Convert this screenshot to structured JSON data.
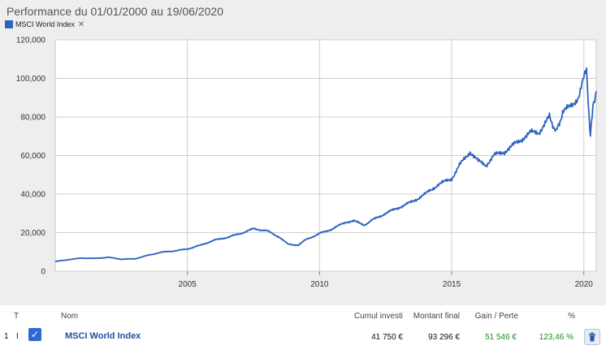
{
  "title": "Performance du 01/01/2000 au 19/06/2020",
  "legend": {
    "label": "MSCI World Index",
    "close_icon": "close-icon",
    "color": "#2d63c0"
  },
  "colors": {
    "line": "#2d63c0",
    "panel_bg": "#eeeeee",
    "grid": "#d0d0d0",
    "link": "#1f4f9c",
    "gain": "#1e8a1e"
  },
  "chart_data": {
    "type": "line",
    "title": "",
    "xlabel": "",
    "ylabel": "",
    "xlim": [
      2000.0,
      2020.47
    ],
    "ylim": [
      0,
      120000
    ],
    "y_ticks": [
      "0",
      "20,000",
      "40,000",
      "60,000",
      "80,000",
      "100,000",
      "120,000"
    ],
    "x_ticks": [
      "2005",
      "2010",
      "2015",
      "2020"
    ],
    "grid": true,
    "series": [
      {
        "name": "MSCI World Index",
        "x": [
          2000.0,
          2000.5,
          2001.0,
          2001.5,
          2002.0,
          2002.5,
          2003.0,
          2003.5,
          2004.0,
          2004.5,
          2005.0,
          2005.5,
          2006.0,
          2006.5,
          2007.0,
          2007.5,
          2008.0,
          2008.5,
          2008.8,
          2009.2,
          2009.5,
          2010.0,
          2010.5,
          2011.0,
          2011.3,
          2011.7,
          2012.0,
          2012.5,
          2013.0,
          2013.5,
          2014.0,
          2014.5,
          2015.0,
          2015.3,
          2015.7,
          2016.0,
          2016.3,
          2016.6,
          2017.0,
          2017.5,
          2018.0,
          2018.3,
          2018.7,
          2018.95,
          2019.2,
          2019.5,
          2019.8,
          2020.0,
          2020.1,
          2020.2,
          2020.25,
          2020.35,
          2020.47
        ],
        "values": [
          5000,
          6000,
          6800,
          6600,
          7200,
          6200,
          6400,
          8200,
          9800,
          10500,
          11500,
          13500,
          16000,
          17500,
          19500,
          22000,
          21000,
          17500,
          14000,
          13500,
          16500,
          19500,
          22000,
          25500,
          26000,
          24000,
          26500,
          30000,
          33000,
          36000,
          40000,
          45000,
          48000,
          55000,
          62000,
          57000,
          55000,
          60000,
          62000,
          67000,
          72000,
          72000,
          80000,
          72000,
          82000,
          86000,
          90000,
          100000,
          104000,
          80000,
          70000,
          85000,
          93296
        ]
      }
    ]
  },
  "results": {
    "headers": {
      "t": "T",
      "nom": "Nom",
      "cumul": "Cumul investi",
      "montant": "Montant final",
      "gain": "Gain / Perte",
      "pct": "%"
    },
    "row": {
      "index": "1",
      "type": "I",
      "checked": true,
      "name": "MSCI World Index",
      "cumul": "41 750 €",
      "montant": "93 296 €",
      "gain": "51 546 €",
      "pct": "123,46 %",
      "delete_icon": "trash-icon"
    }
  }
}
